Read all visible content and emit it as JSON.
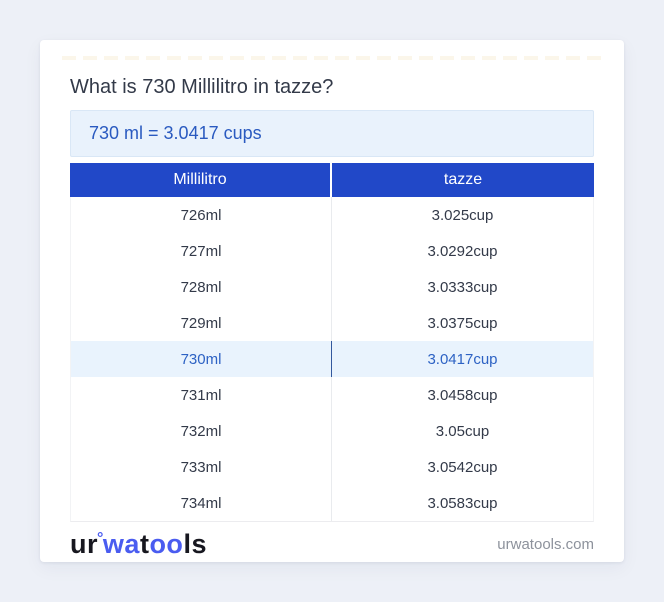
{
  "title": "What is 730 Millilitro in tazze?",
  "result": "730 ml = 3.0417 cups",
  "table": {
    "headers": [
      "Millilitro",
      "tazze"
    ],
    "highlighted_row_index": 4,
    "rows": [
      {
        "ml": "726ml",
        "cup": "3.025cup"
      },
      {
        "ml": "727ml",
        "cup": "3.0292cup"
      },
      {
        "ml": "728ml",
        "cup": "3.0333cup"
      },
      {
        "ml": "729ml",
        "cup": "3.0375cup"
      },
      {
        "ml": "730ml",
        "cup": "3.0417cup"
      },
      {
        "ml": "731ml",
        "cup": "3.0458cup"
      },
      {
        "ml": "732ml",
        "cup": "3.05cup"
      },
      {
        "ml": "733ml",
        "cup": "3.0542cup"
      },
      {
        "ml": "734ml",
        "cup": "3.0583cup"
      }
    ]
  },
  "logo": {
    "part1": "ur",
    "ring": "°",
    "part2": "wa",
    "part3": "t",
    "part4": "oo",
    "part5": "ls"
  },
  "footer": {
    "domain": "urwatools.com"
  },
  "colors": {
    "page_bg": "#edf0f7",
    "header_bg": "#2148c8",
    "result_bg": "#e9f2fc",
    "result_text": "#2a5ac0",
    "highlight_bg": "#e9f3fd",
    "highlight_text": "#2d62c4",
    "body_text": "#333a49",
    "logo_blue": "#4a5cf0",
    "footer_text": "#8d929c"
  }
}
